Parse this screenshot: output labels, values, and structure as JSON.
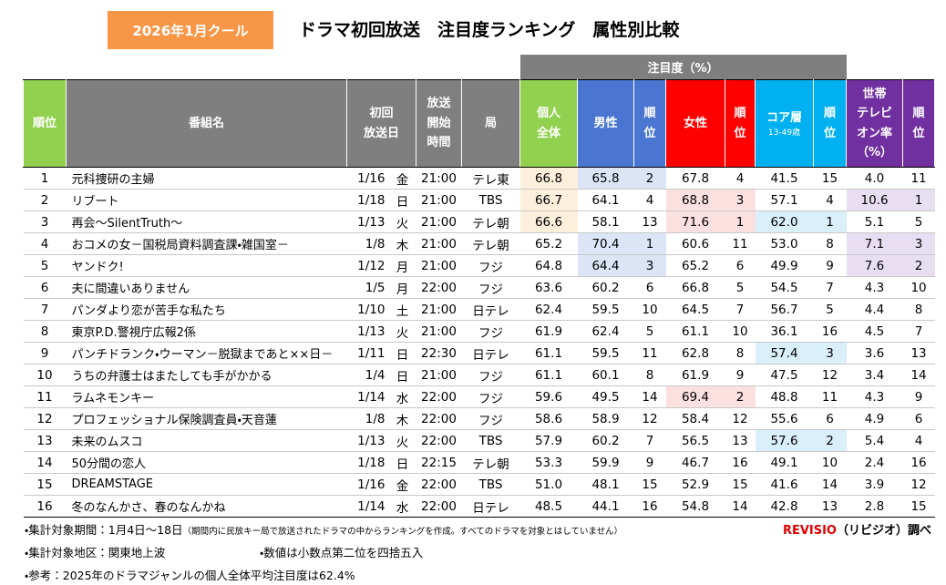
{
  "header": {
    "badge": "2026年1月クール",
    "title": "ドラマ初回放送　注目度ランキング　属性別比較"
  },
  "table": {
    "group_header": "注目度（%）",
    "headers": [
      "順位",
      "番組名",
      "初回\n放送日",
      "放送\n開始\n時間",
      "局",
      "個人\n全体",
      "男性",
      "順\n位",
      "女性",
      "順\n位",
      "コア層",
      "順\n位",
      "世帯\nテレビ\nオン率\n（%）",
      "順\n位"
    ],
    "core_note": "13-49歳",
    "rows": [
      [
        "1",
        "元科捜研の主婦",
        "1/16",
        "金",
        "21:00",
        "テレ東",
        "66.8",
        "65.8",
        "2",
        "67.8",
        "4",
        "41.5",
        "15",
        "4.0",
        "11"
      ],
      [
        "2",
        "リブート",
        "1/18",
        "日",
        "21:00",
        "TBS",
        "66.7",
        "64.1",
        "4",
        "68.8",
        "3",
        "57.1",
        "4",
        "10.6",
        "1"
      ],
      [
        "3",
        "再会～SilentTruth～",
        "1/13",
        "火",
        "21:00",
        "テレ朝",
        "66.6",
        "58.1",
        "13",
        "71.6",
        "1",
        "62.0",
        "1",
        "5.1",
        "5"
      ],
      [
        "4",
        "おコメの女－国税局資料調査課・雑国室－",
        "1/8",
        "木",
        "21:00",
        "テレ朝",
        "65.2",
        "70.4",
        "1",
        "60.6",
        "11",
        "53.0",
        "8",
        "7.1",
        "3"
      ],
      [
        "5",
        "ヤンドク!",
        "1/12",
        "月",
        "21:00",
        "フジ",
        "64.8",
        "64.4",
        "3",
        "65.2",
        "6",
        "49.9",
        "9",
        "7.6",
        "2"
      ],
      [
        "6",
        "夫に間違いありません",
        "1/5",
        "月",
        "22:00",
        "フジ",
        "63.6",
        "60.2",
        "6",
        "66.8",
        "5",
        "54.5",
        "7",
        "4.3",
        "10"
      ],
      [
        "7",
        "パンダより恋が苦手な私たち",
        "1/10",
        "土",
        "21:00",
        "日テレ",
        "62.4",
        "59.5",
        "10",
        "64.5",
        "7",
        "56.7",
        "5",
        "4.4",
        "8"
      ],
      [
        "8",
        "東京P.D.警視庁広報2係",
        "1/13",
        "火",
        "21:00",
        "フジ",
        "61.9",
        "62.4",
        "5",
        "61.1",
        "10",
        "36.1",
        "16",
        "4.5",
        "7"
      ],
      [
        "9",
        "パンチドランク・ウーマン－脱獄まであと××日－",
        "1/11",
        "日",
        "22:30",
        "日テレ",
        "61.1",
        "59.5",
        "11",
        "62.8",
        "8",
        "57.4",
        "3",
        "3.6",
        "13"
      ],
      [
        "10",
        "うちの弁護士はまたしても手がかかる",
        "1/4",
        "日",
        "21:00",
        "フジ",
        "61.1",
        "60.1",
        "8",
        "61.9",
        "9",
        "47.5",
        "12",
        "3.4",
        "14"
      ],
      [
        "11",
        "ラムネモンキー",
        "1/14",
        "水",
        "22:00",
        "フジ",
        "59.6",
        "49.5",
        "14",
        "69.4",
        "2",
        "48.8",
        "11",
        "4.3",
        "9"
      ],
      [
        "12",
        "プロフェッショナル保険調査員・天音蓮",
        "1/8",
        "木",
        "22:00",
        "フジ",
        "58.6",
        "58.9",
        "12",
        "58.4",
        "12",
        "55.6",
        "6",
        "4.9",
        "6"
      ],
      [
        "13",
        "未来のムスコ",
        "1/13",
        "火",
        "22:00",
        "TBS",
        "57.9",
        "60.2",
        "7",
        "56.5",
        "13",
        "57.6",
        "2",
        "5.4",
        "4"
      ],
      [
        "14",
        "50分間の恋人",
        "1/18",
        "日",
        "22:15",
        "テレ朝",
        "53.3",
        "59.9",
        "9",
        "46.7",
        "16",
        "49.1",
        "10",
        "2.4",
        "16"
      ],
      [
        "15",
        "DREAMSTAGE",
        "1/16",
        "金",
        "22:00",
        "TBS",
        "51.0",
        "48.1",
        "15",
        "52.9",
        "15",
        "41.6",
        "14",
        "3.9",
        "12"
      ],
      [
        "16",
        "冬のなんかさ、春のなんかね",
        "1/14",
        "水",
        "22:00",
        "日テレ",
        "48.5",
        "44.1",
        "16",
        "54.8",
        "14",
        "42.8",
        "13",
        "2.8",
        "15"
      ]
    ]
  },
  "footer": {
    "period": "・集計対象期間：1月4日～18日",
    "period_note": "（期間内に民放キー局で放送されたドラマの中からランキングを作成。すべてのドラマを対象とはしていません）",
    "source_brand": "REVISIO",
    "source_rest": "（リビジオ）調べ",
    "region": "・集計対象地区：関東地上波",
    "rounding": "・数値は小数点第二位を四捨五入",
    "reference": "・参考：2025年のドラマジャンルの個人全体平均注目度は62.4%"
  }
}
